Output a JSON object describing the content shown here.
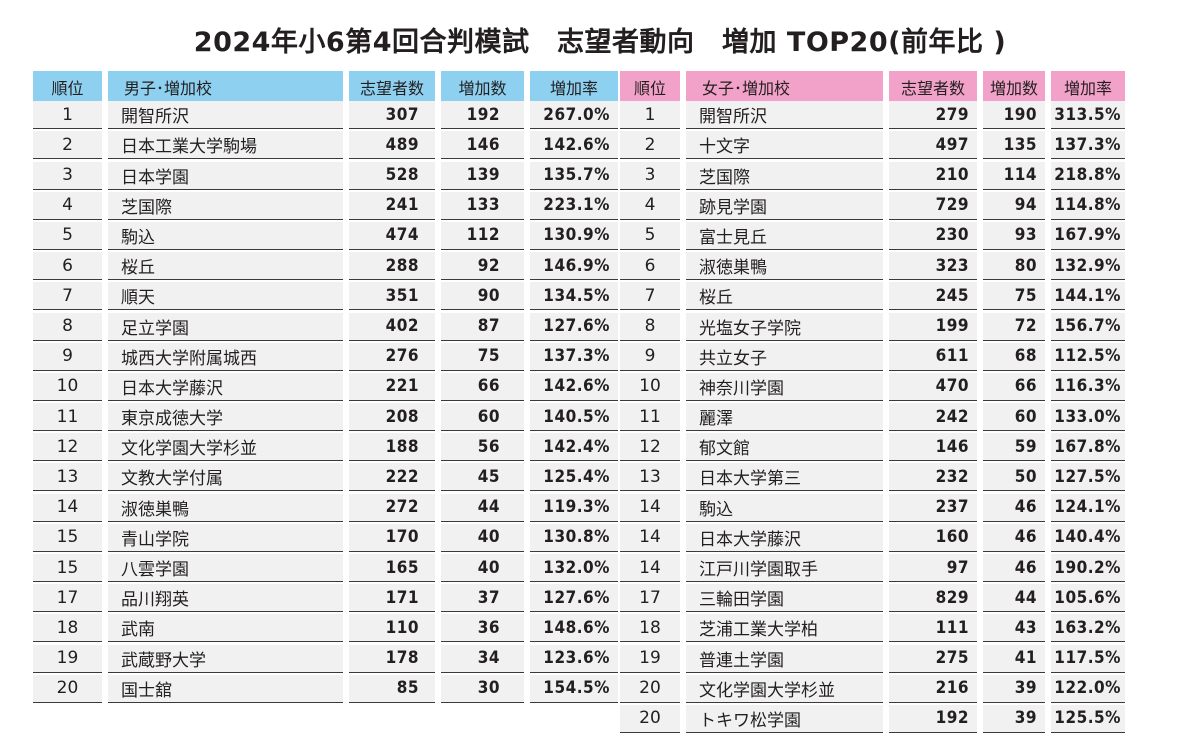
{
  "title": "2024年小6第4回合判模試　志望者動向　増加 TOP20(前年比 )",
  "colors": {
    "boys_header": "#8dd0f0",
    "girls_header": "#f2a2c8",
    "cell_bg": "#f1f1f1",
    "text": "#231f20"
  },
  "boys": {
    "headers": {
      "rank": "順位",
      "name": "男子･増加校",
      "applicants": "志望者数",
      "increase": "増加数",
      "rate": "増加率"
    },
    "rows": [
      {
        "rank": "1",
        "name": "開智所沢",
        "applicants": "307",
        "increase": "192",
        "rate": "267.0%"
      },
      {
        "rank": "2",
        "name": "日本工業大学駒場",
        "applicants": "489",
        "increase": "146",
        "rate": "142.6%"
      },
      {
        "rank": "3",
        "name": "日本学園",
        "applicants": "528",
        "increase": "139",
        "rate": "135.7%"
      },
      {
        "rank": "4",
        "name": "芝国際",
        "applicants": "241",
        "increase": "133",
        "rate": "223.1%"
      },
      {
        "rank": "5",
        "name": "駒込",
        "applicants": "474",
        "increase": "112",
        "rate": "130.9%"
      },
      {
        "rank": "6",
        "name": "桜丘",
        "applicants": "288",
        "increase": "92",
        "rate": "146.9%"
      },
      {
        "rank": "7",
        "name": "順天",
        "applicants": "351",
        "increase": "90",
        "rate": "134.5%"
      },
      {
        "rank": "8",
        "name": "足立学園",
        "applicants": "402",
        "increase": "87",
        "rate": "127.6%"
      },
      {
        "rank": "9",
        "name": "城西大学附属城西",
        "applicants": "276",
        "increase": "75",
        "rate": "137.3%"
      },
      {
        "rank": "10",
        "name": "日本大学藤沢",
        "applicants": "221",
        "increase": "66",
        "rate": "142.6%"
      },
      {
        "rank": "11",
        "name": "東京成徳大学",
        "applicants": "208",
        "increase": "60",
        "rate": "140.5%"
      },
      {
        "rank": "12",
        "name": "文化学園大学杉並",
        "applicants": "188",
        "increase": "56",
        "rate": "142.4%"
      },
      {
        "rank": "13",
        "name": "文教大学付属",
        "applicants": "222",
        "increase": "45",
        "rate": "125.4%"
      },
      {
        "rank": "14",
        "name": "淑徳巣鴨",
        "applicants": "272",
        "increase": "44",
        "rate": "119.3%"
      },
      {
        "rank": "15",
        "name": "青山学院",
        "applicants": "170",
        "increase": "40",
        "rate": "130.8%"
      },
      {
        "rank": "15",
        "name": "八雲学園",
        "applicants": "165",
        "increase": "40",
        "rate": "132.0%"
      },
      {
        "rank": "17",
        "name": "品川翔英",
        "applicants": "171",
        "increase": "37",
        "rate": "127.6%"
      },
      {
        "rank": "18",
        "name": "武南",
        "applicants": "110",
        "increase": "36",
        "rate": "148.6%"
      },
      {
        "rank": "19",
        "name": "武蔵野大学",
        "applicants": "178",
        "increase": "34",
        "rate": "123.6%"
      },
      {
        "rank": "20",
        "name": "国士舘",
        "applicants": "85",
        "increase": "30",
        "rate": "154.5%"
      }
    ]
  },
  "girls": {
    "headers": {
      "rank": "順位",
      "name": "女子･増加校",
      "applicants": "志望者数",
      "increase": "増加数",
      "rate": "増加率"
    },
    "rows": [
      {
        "rank": "1",
        "name": "開智所沢",
        "applicants": "279",
        "increase": "190",
        "rate": "313.5%"
      },
      {
        "rank": "2",
        "name": "十文字",
        "applicants": "497",
        "increase": "135",
        "rate": "137.3%"
      },
      {
        "rank": "3",
        "name": "芝国際",
        "applicants": "210",
        "increase": "114",
        "rate": "218.8%"
      },
      {
        "rank": "4",
        "name": "跡見学園",
        "applicants": "729",
        "increase": "94",
        "rate": "114.8%"
      },
      {
        "rank": "5",
        "name": "富士見丘",
        "applicants": "230",
        "increase": "93",
        "rate": "167.9%"
      },
      {
        "rank": "6",
        "name": "淑徳巣鴨",
        "applicants": "323",
        "increase": "80",
        "rate": "132.9%"
      },
      {
        "rank": "7",
        "name": "桜丘",
        "applicants": "245",
        "increase": "75",
        "rate": "144.1%"
      },
      {
        "rank": "8",
        "name": "光塩女子学院",
        "applicants": "199",
        "increase": "72",
        "rate": "156.7%"
      },
      {
        "rank": "9",
        "name": "共立女子",
        "applicants": "611",
        "increase": "68",
        "rate": "112.5%"
      },
      {
        "rank": "10",
        "name": "神奈川学園",
        "applicants": "470",
        "increase": "66",
        "rate": "116.3%"
      },
      {
        "rank": "11",
        "name": "麗澤",
        "applicants": "242",
        "increase": "60",
        "rate": "133.0%"
      },
      {
        "rank": "12",
        "name": "郁文館",
        "applicants": "146",
        "increase": "59",
        "rate": "167.8%"
      },
      {
        "rank": "13",
        "name": "日本大学第三",
        "applicants": "232",
        "increase": "50",
        "rate": "127.5%"
      },
      {
        "rank": "14",
        "name": "駒込",
        "applicants": "237",
        "increase": "46",
        "rate": "124.1%"
      },
      {
        "rank": "14",
        "name": "日本大学藤沢",
        "applicants": "160",
        "increase": "46",
        "rate": "140.4%"
      },
      {
        "rank": "14",
        "name": "江戸川学園取手",
        "applicants": "97",
        "increase": "46",
        "rate": "190.2%"
      },
      {
        "rank": "17",
        "name": "三輪田学園",
        "applicants": "829",
        "increase": "44",
        "rate": "105.6%"
      },
      {
        "rank": "18",
        "name": "芝浦工業大学柏",
        "applicants": "111",
        "increase": "43",
        "rate": "163.2%"
      },
      {
        "rank": "19",
        "name": "普連土学園",
        "applicants": "275",
        "increase": "41",
        "rate": "117.5%"
      },
      {
        "rank": "20",
        "name": "文化学園大学杉並",
        "applicants": "216",
        "increase": "39",
        "rate": "122.0%"
      },
      {
        "rank": "20",
        "name": "トキワ松学園",
        "applicants": "192",
        "increase": "39",
        "rate": "125.5%"
      }
    ]
  }
}
